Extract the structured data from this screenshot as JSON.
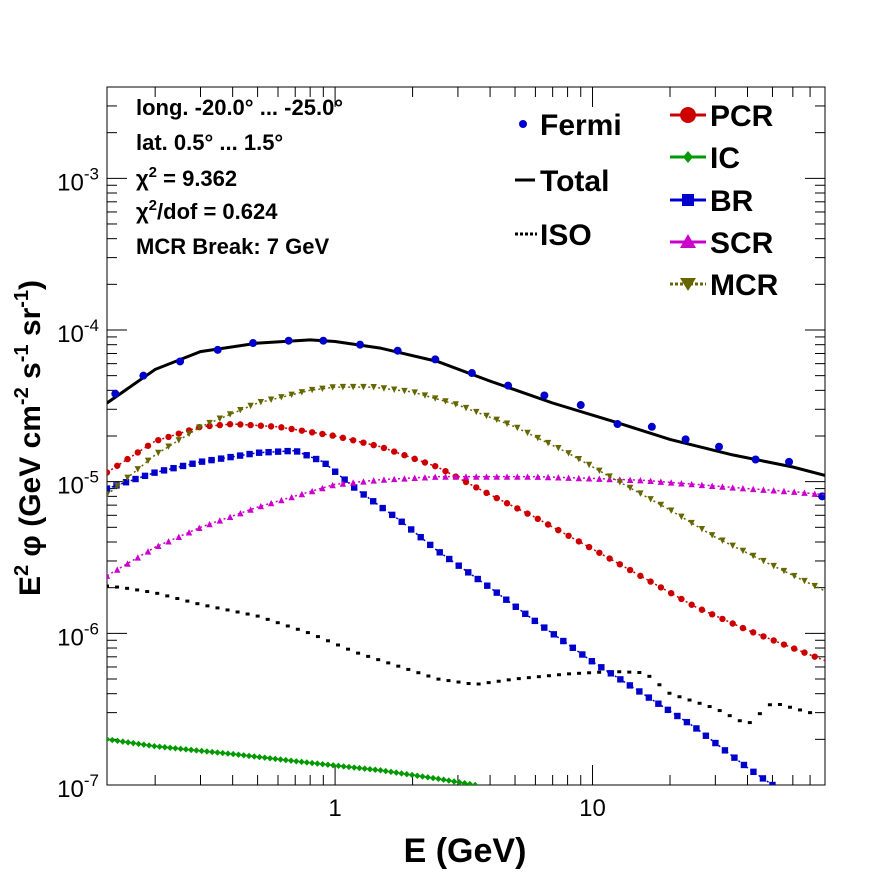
{
  "chart_data": {
    "type": "line",
    "xlabel": "E (GeV)",
    "ylabel_parts": [
      "E",
      "2",
      "  φ (GeV cm",
      "-2",
      " s",
      "-1",
      " sr",
      "-1",
      ")"
    ],
    "xscale": "log",
    "yscale": "log",
    "xlim": [
      0.13,
      80
    ],
    "ylim": [
      1e-07,
      0.004
    ],
    "x_tick_labels": [
      {
        "value": 1,
        "label": "1"
      },
      {
        "value": 10,
        "label": "10"
      }
    ],
    "y_tick_labels": [
      {
        "value": 1e-07,
        "base": "10",
        "exp": "-7"
      },
      {
        "value": 1e-06,
        "base": "10",
        "exp": "-6"
      },
      {
        "value": 1e-05,
        "base": "10",
        "exp": "-5"
      },
      {
        "value": 0.0001,
        "base": "10",
        "exp": "-4"
      },
      {
        "value": 0.001,
        "base": "10",
        "exp": "-3"
      }
    ],
    "annotations": {
      "line1": "long. -20.0° ... -25.0°",
      "line2": "lat. 0.5° ... 1.5°",
      "chi2_symbol": "χ",
      "chi2_exp": "2",
      "chi2_value": " = 9.362",
      "chi2dof_symbol": "χ",
      "chi2dof_exp": "2",
      "chi2dof_value": "/dof = 0.624",
      "line5": "MCR Break:  7 GeV"
    },
    "legend": {
      "fermi": "Fermi",
      "total": "Total",
      "iso": "ISO",
      "pcr": "PCR",
      "ic": "IC",
      "br": "BR",
      "scr": "SCR",
      "mcr": "MCR"
    },
    "colors": {
      "fermi": "#0000cc",
      "total": "#000000",
      "iso": "#000000",
      "pcr": "#cc0000",
      "ic": "#009900",
      "br": "#0000cc",
      "scr": "#cc00cc",
      "mcr": "#666600"
    },
    "series": [
      {
        "name": "Total",
        "key": "total",
        "style": "line",
        "points": [
          [
            0.13,
            3.3e-05
          ],
          [
            0.2,
            5.5e-05
          ],
          [
            0.3,
            7.2e-05
          ],
          [
            0.5,
            8.2e-05
          ],
          [
            0.8,
            8.6e-05
          ],
          [
            1.0,
            8.4e-05
          ],
          [
            1.5,
            7.6e-05
          ],
          [
            2.5,
            6.2e-05
          ],
          [
            4.0,
            4.6e-05
          ],
          [
            7.0,
            3.3e-05
          ],
          [
            12,
            2.5e-05
          ],
          [
            20,
            1.9e-05
          ],
          [
            35,
            1.5e-05
          ],
          [
            60,
            1.25e-05
          ],
          [
            80,
            1.1e-05
          ]
        ]
      },
      {
        "name": "Fermi",
        "key": "fermi",
        "style": "points",
        "points": [
          [
            0.14,
            3.8e-05
          ],
          [
            0.18,
            5e-05
          ],
          [
            0.25,
            6.2e-05
          ],
          [
            0.35,
            7.4e-05
          ],
          [
            0.48,
            8.2e-05
          ],
          [
            0.66,
            8.5e-05
          ],
          [
            0.9,
            8.5e-05
          ],
          [
            1.25,
            8e-05
          ],
          [
            1.75,
            7.3e-05
          ],
          [
            2.45,
            6.4e-05
          ],
          [
            3.4,
            5.2e-05
          ],
          [
            4.7,
            4.3e-05
          ],
          [
            6.5,
            3.7e-05
          ],
          [
            9.0,
            3.2e-05
          ],
          [
            12.5,
            2.4e-05
          ],
          [
            17,
            2.3e-05
          ],
          [
            23,
            1.9e-05
          ],
          [
            31,
            1.7e-05
          ],
          [
            43,
            1.4e-05
          ],
          [
            58,
            1.35e-05
          ],
          [
            78,
            8e-06
          ]
        ],
        "errors": [
          [
            0.25,
            0.25
          ],
          [
            0.3,
            0.3
          ],
          [
            0.5,
            0.5
          ],
          [
            0.6,
            0.6
          ],
          [
            0.7,
            0.7
          ],
          [
            1.0,
            1.0
          ],
          [
            2.0,
            2.0
          ],
          [
            2.5,
            2.5
          ],
          [
            2.5,
            2.5
          ]
        ]
      },
      {
        "name": "ISO",
        "key": "iso",
        "style": "dots",
        "points": [
          [
            0.13,
            2.05e-06
          ],
          [
            0.15,
            2e-06
          ],
          [
            0.2,
            1.85e-06
          ],
          [
            0.3,
            1.55e-06
          ],
          [
            0.5,
            1.3e-06
          ],
          [
            0.8,
            1e-06
          ],
          [
            1.2,
            7.5e-07
          ],
          [
            1.8,
            6e-07
          ],
          [
            2.5,
            5e-07
          ],
          [
            3.5,
            4.6e-07
          ],
          [
            5,
            5e-07
          ],
          [
            8,
            5.4e-07
          ],
          [
            12,
            5.6e-07
          ],
          [
            16,
            5.5e-07
          ],
          [
            20,
            4e-07
          ],
          [
            30,
            3.2e-07
          ],
          [
            40,
            2.5e-07
          ],
          [
            50,
            3.5e-07
          ],
          [
            70,
            3e-07
          ]
        ]
      },
      {
        "name": "PCR",
        "key": "pcr",
        "style": "markers",
        "marker": "circle",
        "points": [
          [
            0.13,
            1.15e-05
          ],
          [
            0.2,
            1.85e-05
          ],
          [
            0.3,
            2.3e-05
          ],
          [
            0.4,
            2.4e-05
          ],
          [
            0.6,
            2.3e-05
          ],
          [
            1.0,
            2e-05
          ],
          [
            1.5,
            1.7e-05
          ],
          [
            2.5,
            1.25e-05
          ],
          [
            4.0,
            8.2e-06
          ],
          [
            6.0,
            5.8e-06
          ],
          [
            10,
            3.6e-06
          ],
          [
            16,
            2.3e-06
          ],
          [
            25,
            1.5e-06
          ],
          [
            40,
            1.05e-06
          ],
          [
            60,
            8e-07
          ],
          [
            80,
            6.6e-07
          ]
        ]
      },
      {
        "name": "IC",
        "key": "ic",
        "style": "markers",
        "marker": "diamond",
        "points": [
          [
            0.13,
            2e-07
          ],
          [
            0.2,
            1.8e-07
          ],
          [
            0.4,
            1.6e-07
          ],
          [
            0.8,
            1.4e-07
          ],
          [
            1.5,
            1.25e-07
          ],
          [
            2.5,
            1.1e-07
          ],
          [
            3.5,
            1e-07
          ]
        ]
      },
      {
        "name": "BR",
        "key": "br",
        "style": "markers",
        "marker": "square",
        "points": [
          [
            0.13,
            9e-06
          ],
          [
            0.2,
            1.15e-05
          ],
          [
            0.3,
            1.35e-05
          ],
          [
            0.5,
            1.55e-05
          ],
          [
            0.7,
            1.6e-05
          ],
          [
            0.9,
            1.35e-05
          ],
          [
            1.2,
            9e-06
          ],
          [
            1.8,
            5.5e-06
          ],
          [
            2.5,
            3.5e-06
          ],
          [
            4,
            2e-06
          ],
          [
            6,
            1.2e-06
          ],
          [
            10,
            6.5e-07
          ],
          [
            15,
            4.2e-07
          ],
          [
            25,
            2.4e-07
          ],
          [
            40,
            1.3e-07
          ],
          [
            50,
            1e-07
          ]
        ]
      },
      {
        "name": "SCR",
        "key": "scr",
        "style": "markers",
        "marker": "triangle-up",
        "points": [
          [
            0.13,
            2.4e-06
          ],
          [
            0.2,
            3.7e-06
          ],
          [
            0.3,
            5e-06
          ],
          [
            0.5,
            6.8e-06
          ],
          [
            0.8,
            8.6e-06
          ],
          [
            1.0,
            9.6e-06
          ],
          [
            1.5,
            1.03e-05
          ],
          [
            2.5,
            1.08e-05
          ],
          [
            4,
            1.08e-05
          ],
          [
            6,
            1.08e-05
          ],
          [
            10,
            1.05e-05
          ],
          [
            16,
            1.02e-05
          ],
          [
            25,
            9.6e-06
          ],
          [
            40,
            9e-06
          ],
          [
            60,
            8.6e-06
          ],
          [
            80,
            8.2e-06
          ]
        ]
      },
      {
        "name": "MCR",
        "key": "mcr",
        "style": "markers",
        "marker": "triangle-down",
        "points": [
          [
            0.13,
            8.2e-06
          ],
          [
            0.2,
            1.5e-05
          ],
          [
            0.3,
            2.3e-05
          ],
          [
            0.5,
            3.3e-05
          ],
          [
            0.8,
            4e-05
          ],
          [
            1.0,
            4.2e-05
          ],
          [
            1.4,
            4.2e-05
          ],
          [
            2.0,
            3.9e-05
          ],
          [
            3.0,
            3.2e-05
          ],
          [
            5,
            2.3e-05
          ],
          [
            8,
            1.55e-05
          ],
          [
            12,
            1.05e-05
          ],
          [
            20,
            6.5e-06
          ],
          [
            30,
            4.3e-06
          ],
          [
            50,
            2.8e-06
          ],
          [
            80,
            1.9e-06
          ]
        ]
      }
    ]
  }
}
